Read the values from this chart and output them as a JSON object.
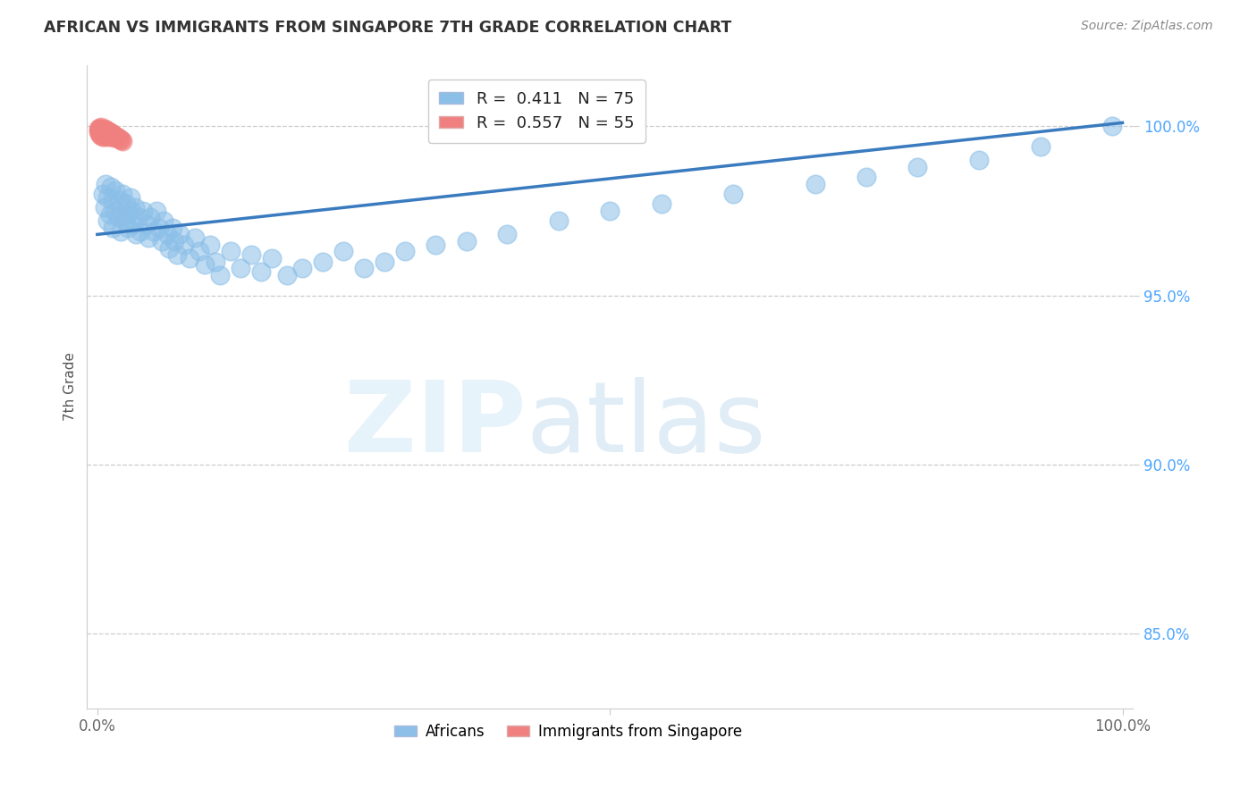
{
  "title": "AFRICAN VS IMMIGRANTS FROM SINGAPORE 7TH GRADE CORRELATION CHART",
  "source": "Source: ZipAtlas.com",
  "ylabel": "7th Grade",
  "ytick_values": [
    0.85,
    0.9,
    0.95,
    1.0
  ],
  "xlim": [
    -0.01,
    1.01
  ],
  "ylim": [
    0.828,
    1.018
  ],
  "r_african": 0.411,
  "n_african": 75,
  "r_singapore": 0.557,
  "n_singapore": 55,
  "color_african": "#8bbfe8",
  "color_singapore": "#f08080",
  "color_line": "#3a7bbf",
  "color_grid": "#cccccc",
  "color_ytick_labels": "#4da6ff",
  "color_xtick_labels": "#666666",
  "line_start_y": 0.968,
  "line_end_y": 1.001,
  "african_x": [
    0.005,
    0.007,
    0.008,
    0.01,
    0.01,
    0.012,
    0.013,
    0.015,
    0.015,
    0.017,
    0.018,
    0.02,
    0.022,
    0.023,
    0.025,
    0.025,
    0.027,
    0.028,
    0.03,
    0.03,
    0.032,
    0.033,
    0.035,
    0.037,
    0.038,
    0.04,
    0.042,
    0.045,
    0.048,
    0.05,
    0.052,
    0.055,
    0.058,
    0.06,
    0.063,
    0.065,
    0.068,
    0.07,
    0.073,
    0.075,
    0.078,
    0.08,
    0.085,
    0.09,
    0.095,
    0.1,
    0.105,
    0.11,
    0.115,
    0.12,
    0.13,
    0.14,
    0.15,
    0.16,
    0.17,
    0.185,
    0.2,
    0.22,
    0.24,
    0.26,
    0.28,
    0.3,
    0.33,
    0.36,
    0.4,
    0.45,
    0.5,
    0.55,
    0.62,
    0.7,
    0.75,
    0.8,
    0.86,
    0.92,
    0.99
  ],
  "african_y": [
    0.98,
    0.976,
    0.983,
    0.972,
    0.979,
    0.974,
    0.982,
    0.97,
    0.978,
    0.975,
    0.981,
    0.973,
    0.978,
    0.969,
    0.974,
    0.98,
    0.972,
    0.977,
    0.974,
    0.97,
    0.979,
    0.975,
    0.971,
    0.976,
    0.968,
    0.973,
    0.969,
    0.975,
    0.971,
    0.967,
    0.973,
    0.969,
    0.975,
    0.97,
    0.966,
    0.972,
    0.968,
    0.964,
    0.97,
    0.966,
    0.962,
    0.968,
    0.965,
    0.961,
    0.967,
    0.963,
    0.959,
    0.965,
    0.96,
    0.956,
    0.963,
    0.958,
    0.962,
    0.957,
    0.961,
    0.956,
    0.958,
    0.96,
    0.963,
    0.958,
    0.96,
    0.963,
    0.965,
    0.966,
    0.968,
    0.972,
    0.975,
    0.977,
    0.98,
    0.983,
    0.985,
    0.988,
    0.99,
    0.994,
    1.0
  ],
  "singapore_x": [
    0.001,
    0.001,
    0.002,
    0.002,
    0.002,
    0.003,
    0.003,
    0.003,
    0.003,
    0.004,
    0.004,
    0.004,
    0.004,
    0.005,
    0.005,
    0.005,
    0.005,
    0.006,
    0.006,
    0.006,
    0.007,
    0.007,
    0.007,
    0.007,
    0.008,
    0.008,
    0.008,
    0.009,
    0.009,
    0.009,
    0.01,
    0.01,
    0.01,
    0.011,
    0.011,
    0.011,
    0.012,
    0.012,
    0.013,
    0.013,
    0.014,
    0.014,
    0.015,
    0.015,
    0.016,
    0.016,
    0.017,
    0.018,
    0.019,
    0.02,
    0.021,
    0.022,
    0.023,
    0.024,
    0.025
  ],
  "singapore_y": [
    0.9992,
    0.9985,
    0.999,
    0.9978,
    0.9995,
    0.9988,
    0.9982,
    0.9975,
    0.9993,
    0.9986,
    0.9979,
    0.9972,
    0.9997,
    0.999,
    0.9983,
    0.9976,
    0.9969,
    0.9988,
    0.9981,
    0.9974,
    0.9993,
    0.9985,
    0.9978,
    0.997,
    0.999,
    0.9983,
    0.9975,
    0.9988,
    0.9981,
    0.9973,
    0.9986,
    0.9979,
    0.9971,
    0.9984,
    0.9977,
    0.9969,
    0.9982,
    0.9975,
    0.998,
    0.9973,
    0.9978,
    0.9971,
    0.9976,
    0.9969,
    0.9974,
    0.9967,
    0.9972,
    0.997,
    0.9968,
    0.9966,
    0.9964,
    0.9962,
    0.996,
    0.9958,
    0.9956
  ]
}
